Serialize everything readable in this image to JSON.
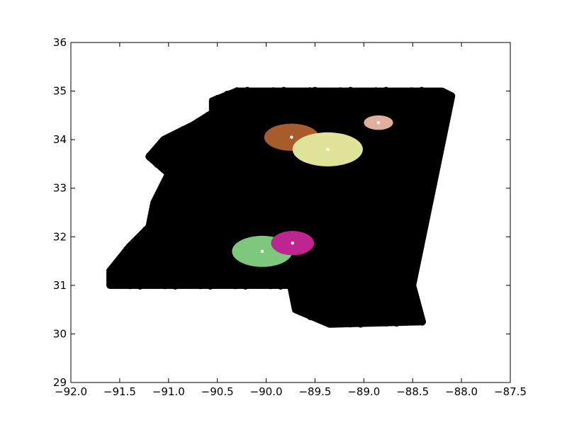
{
  "chart_data": {
    "type": "scatter",
    "title": "",
    "xlabel": "",
    "ylabel": "",
    "xlim": [
      -92.0,
      -87.5
    ],
    "ylim": [
      29,
      36
    ],
    "grid": false,
    "legend": "none",
    "x_ticks": [
      -92.0,
      -91.5,
      -91.0,
      -90.5,
      -90.0,
      -89.5,
      -89.0,
      -88.5,
      -88.0,
      -87.5
    ],
    "x_tick_labels": [
      "−92.0",
      "−91.5",
      "−91.0",
      "−90.5",
      "−90.0",
      "−89.5",
      "−89.0",
      "−88.5",
      "−88.0",
      "−87.5"
    ],
    "y_ticks": [
      29,
      30,
      31,
      32,
      33,
      34,
      35,
      36
    ],
    "y_tick_labels": [
      "29",
      "30",
      "31",
      "32",
      "33",
      "34",
      "35",
      "36"
    ],
    "background_points": {
      "color": "#000000",
      "outline": [
        [
          -89.5,
          35.0
        ],
        [
          -88.2,
          35.0
        ],
        [
          -88.1,
          34.9
        ],
        [
          -88.5,
          31.0
        ],
        [
          -88.4,
          30.25
        ],
        [
          -89.35,
          30.2
        ],
        [
          -89.7,
          30.5
        ],
        [
          -89.75,
          31.0
        ],
        [
          -91.6,
          31.0
        ],
        [
          -91.6,
          31.3
        ],
        [
          -91.4,
          31.8
        ],
        [
          -91.2,
          32.2
        ],
        [
          -91.15,
          32.7
        ],
        [
          -91.0,
          33.3
        ],
        [
          -91.2,
          33.65
        ],
        [
          -91.05,
          34.0
        ],
        [
          -90.75,
          34.3
        ],
        [
          -90.55,
          34.55
        ],
        [
          -90.55,
          34.8
        ],
        [
          -90.3,
          35.0
        ]
      ]
    },
    "clusters": [
      {
        "center": [
          -89.74,
          34.05
        ],
        "rx": 0.28,
        "ry": 0.28,
        "color": "#a85c2c"
      },
      {
        "center": [
          -89.37,
          33.8
        ],
        "rx": 0.36,
        "ry": 0.35,
        "color": "#dfe49a"
      },
      {
        "center": [
          -88.85,
          34.35
        ],
        "rx": 0.15,
        "ry": 0.15,
        "color": "#e0b09c"
      },
      {
        "center": [
          -90.04,
          31.7
        ],
        "rx": 0.31,
        "ry": 0.32,
        "color": "#7dc87d"
      },
      {
        "center": [
          -89.73,
          31.87
        ],
        "rx": 0.22,
        "ry": 0.25,
        "color": "#bf2590"
      }
    ],
    "center_marker_color": "#ffffff"
  }
}
